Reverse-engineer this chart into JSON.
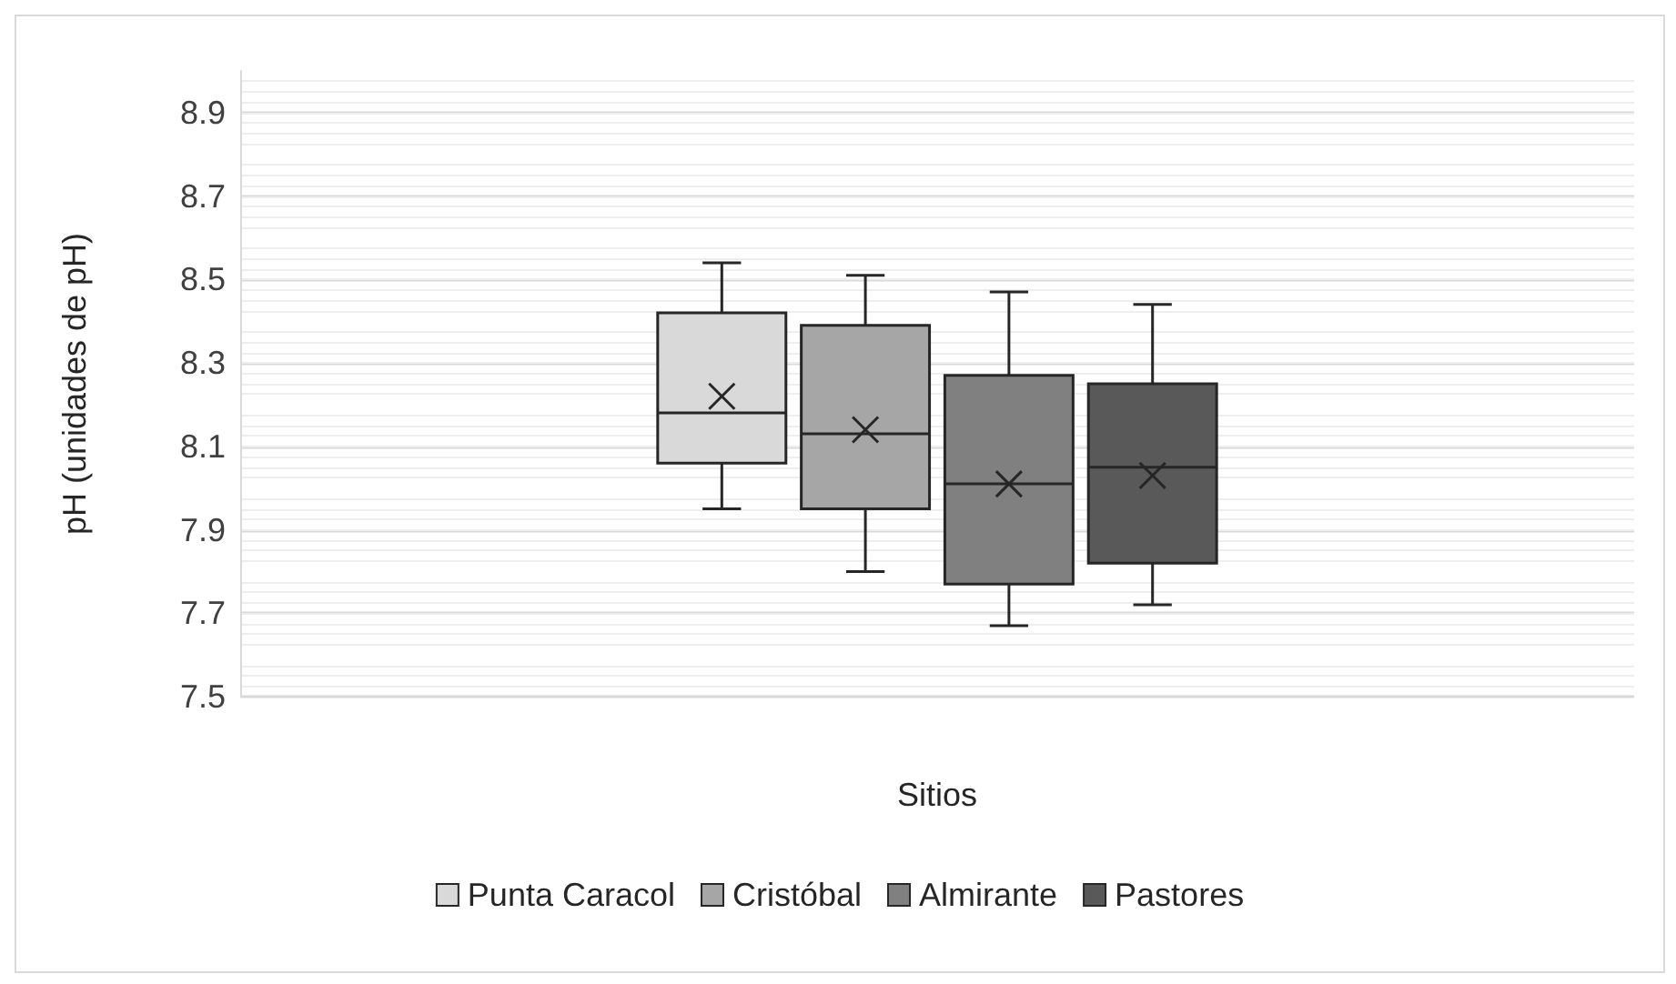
{
  "chart_data": {
    "type": "box",
    "xlabel": "Sitios",
    "ylabel": "pH (unidades de pH)",
    "categories": [
      null
    ],
    "ylim": [
      7.5,
      9.0
    ],
    "yticks": [
      7.5,
      7.7,
      7.9,
      8.1,
      8.3,
      8.5,
      8.7,
      8.9
    ],
    "grid": "y",
    "legend": "bottom",
    "marker": "cross",
    "series": [
      {
        "name": "Punta Caracol",
        "color": "#d9d9d9",
        "boxes": [
          {
            "low": 7.95,
            "q1": 8.06,
            "median": 8.18,
            "q3": 8.42,
            "high": 8.54,
            "mean": 8.22
          }
        ]
      },
      {
        "name": "Cristóbal",
        "color": "#a6a6a6",
        "boxes": [
          {
            "low": 7.8,
            "q1": 7.95,
            "median": 8.13,
            "q3": 8.39,
            "high": 8.51,
            "mean": 8.14
          }
        ]
      },
      {
        "name": "Almirante",
        "color": "#808080",
        "boxes": [
          {
            "low": 7.67,
            "q1": 7.77,
            "median": 8.01,
            "q3": 8.27,
            "high": 8.47,
            "mean": 8.01
          }
        ]
      },
      {
        "name": "Pastores",
        "color": "#595959",
        "boxes": [
          {
            "low": 7.72,
            "q1": 7.82,
            "median": 8.05,
            "q3": 8.25,
            "high": 8.44,
            "mean": 8.03
          }
        ]
      }
    ]
  }
}
